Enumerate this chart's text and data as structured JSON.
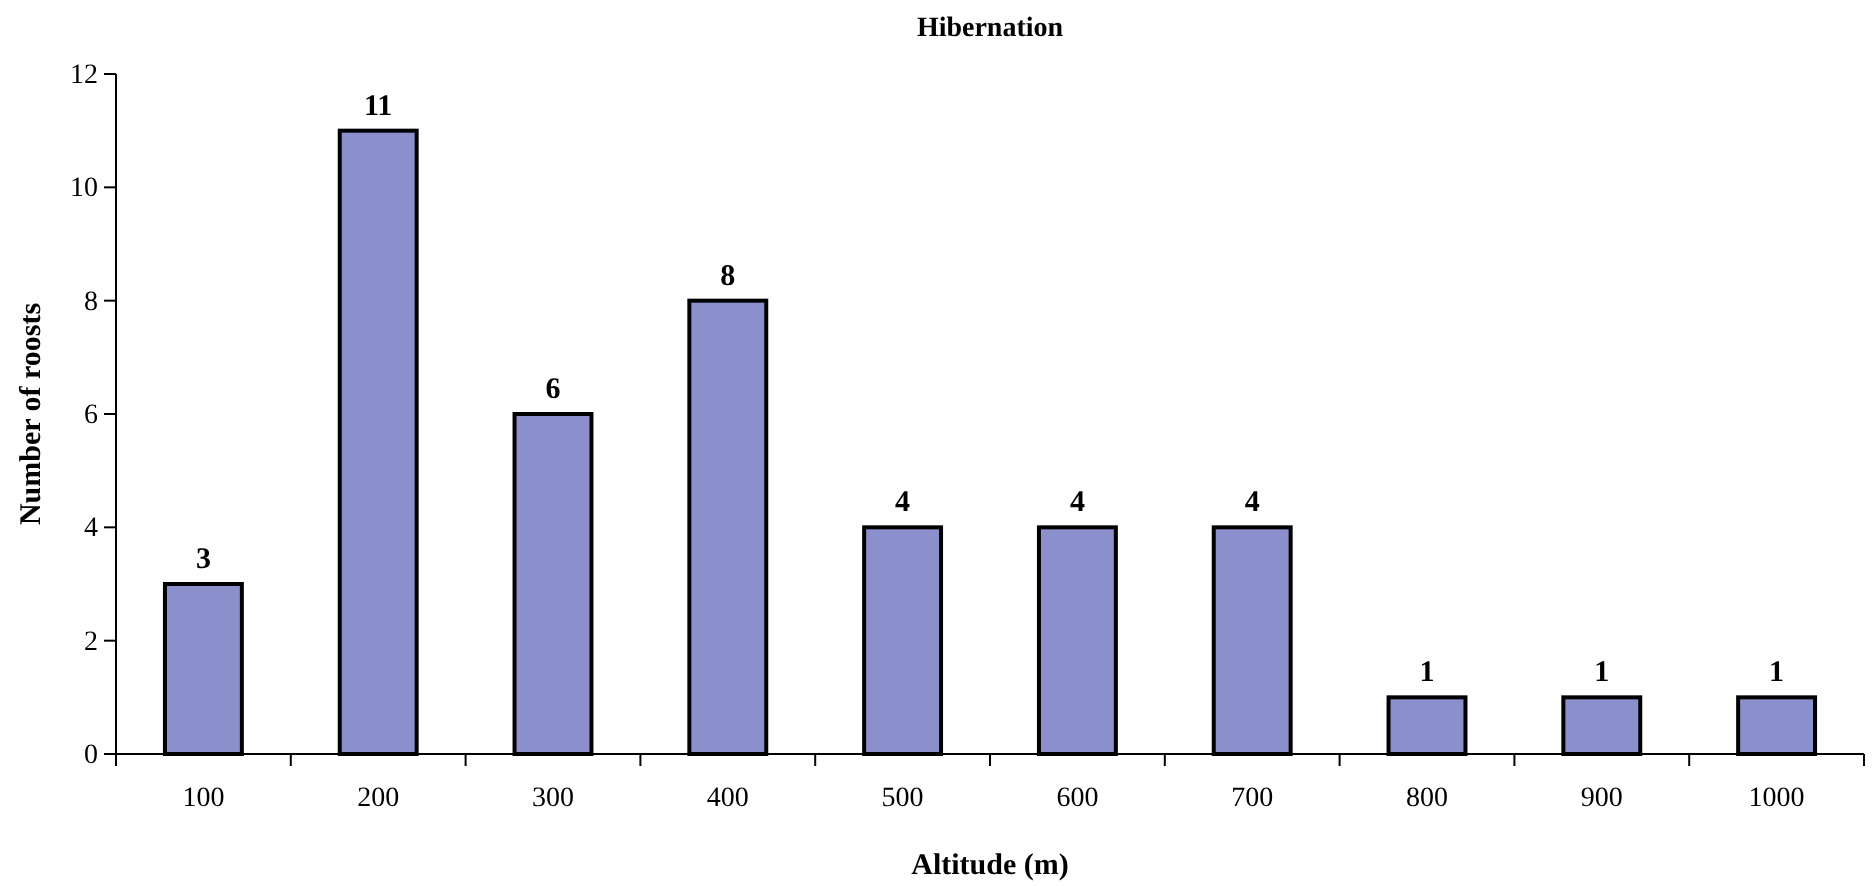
{
  "chart_data": {
    "type": "bar",
    "title": "Hibernation",
    "xlabel": "Altitude (m)",
    "ylabel": "Number of roosts",
    "categories": [
      "100",
      "200",
      "300",
      "400",
      "500",
      "600",
      "700",
      "800",
      "900",
      "1000"
    ],
    "values": [
      3,
      11,
      6,
      8,
      4,
      4,
      4,
      1,
      1,
      1
    ],
    "color": "#8b8fcb",
    "ylim": [
      0,
      12
    ],
    "yticks": [
      0,
      2,
      4,
      6,
      8,
      10,
      12
    ],
    "grid": false,
    "data_labels": true
  }
}
